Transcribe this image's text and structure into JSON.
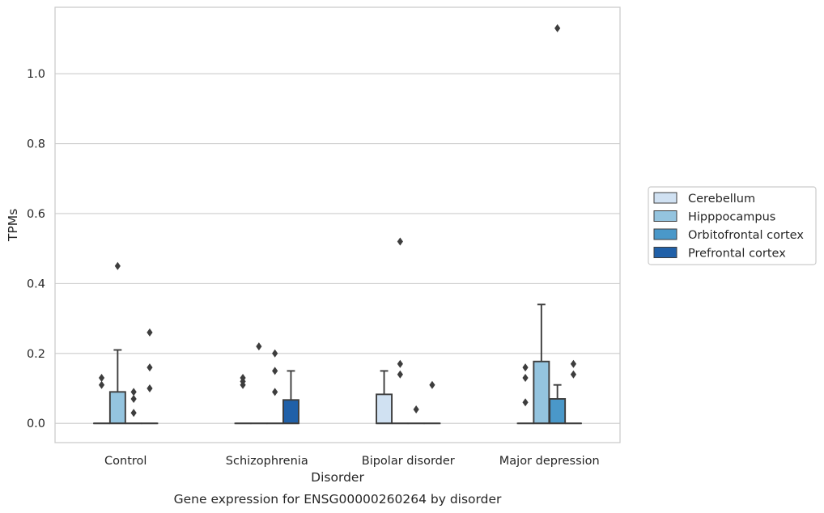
{
  "chart_data": {
    "type": "box",
    "title": "",
    "caption": "Gene expression for ENSG00000260264 by disorder",
    "xlabel": "Disorder",
    "ylabel": "TPMs",
    "ylim": [
      -0.055,
      1.19
    ],
    "yticks": [
      "0.0",
      "0.2",
      "0.4",
      "0.6",
      "0.8",
      "1.0"
    ],
    "ytick_values": [
      0,
      0.2,
      0.4,
      0.6,
      0.8,
      1.0
    ],
    "grid": "horizontal",
    "legend_position": "right",
    "categories": [
      "Control",
      "Schizophrenia",
      "Bipolar disorder",
      "Major depression"
    ],
    "series": [
      {
        "name": "Cerebellum",
        "color": "#d0e1f2",
        "boxes": [
          {
            "q1": 0,
            "median": 0,
            "q3": 0,
            "whisker_low": 0,
            "whisker_high": 0,
            "outliers": [
              0.11,
              0.13
            ]
          },
          {
            "q1": 0,
            "median": 0,
            "q3": 0,
            "whisker_low": 0,
            "whisker_high": 0,
            "outliers": [
              0.11,
              0.12,
              0.13
            ]
          },
          {
            "q1": 0,
            "median": 0,
            "q3": 0.083,
            "whisker_low": 0,
            "whisker_high": 0.15,
            "outliers": []
          },
          {
            "q1": 0,
            "median": 0,
            "q3": 0,
            "whisker_low": 0,
            "whisker_high": 0,
            "outliers": [
              0.06,
              0.13,
              0.16
            ]
          }
        ]
      },
      {
        "name": "Hipppocampus",
        "color": "#94c4df",
        "boxes": [
          {
            "q1": 0,
            "median": 0,
            "q3": 0.09,
            "whisker_low": 0,
            "whisker_high": 0.21,
            "outliers": [
              0.45
            ]
          },
          {
            "q1": 0,
            "median": 0,
            "q3": 0,
            "whisker_low": 0,
            "whisker_high": 0,
            "outliers": [
              0.22
            ]
          },
          {
            "q1": 0,
            "median": 0,
            "q3": 0,
            "whisker_low": 0,
            "whisker_high": 0,
            "outliers": [
              0.14,
              0.17,
              0.52
            ]
          },
          {
            "q1": 0,
            "median": 0,
            "q3": 0.177,
            "whisker_low": 0,
            "whisker_high": 0.34,
            "outliers": []
          }
        ]
      },
      {
        "name": "Orbitofrontal cortex",
        "color": "#4a98c9",
        "boxes": [
          {
            "q1": 0,
            "median": 0,
            "q3": 0,
            "whisker_low": 0,
            "whisker_high": 0,
            "outliers": [
              0.03,
              0.07,
              0.09
            ]
          },
          {
            "q1": 0,
            "median": 0,
            "q3": 0,
            "whisker_low": 0,
            "whisker_high": 0,
            "outliers": [
              0.09,
              0.15,
              0.2
            ]
          },
          {
            "q1": 0,
            "median": 0,
            "q3": 0,
            "whisker_low": 0,
            "whisker_high": 0,
            "outliers": [
              0.04
            ]
          },
          {
            "q1": 0,
            "median": 0,
            "q3": 0.07,
            "whisker_low": 0,
            "whisker_high": 0.11,
            "outliers": [
              1.13
            ]
          }
        ]
      },
      {
        "name": "Prefrontal cortex",
        "color": "#2060a8",
        "boxes": [
          {
            "q1": 0,
            "median": 0,
            "q3": 0,
            "whisker_low": 0,
            "whisker_high": 0,
            "outliers": [
              0.1,
              0.16,
              0.26
            ]
          },
          {
            "q1": 0,
            "median": 0,
            "q3": 0.067,
            "whisker_low": 0,
            "whisker_high": 0.15,
            "outliers": []
          },
          {
            "q1": 0,
            "median": 0,
            "q3": 0,
            "whisker_low": 0,
            "whisker_high": 0,
            "outliers": [
              0.11
            ]
          },
          {
            "q1": 0,
            "median": 0,
            "q3": 0,
            "whisker_low": 0,
            "whisker_high": 0,
            "outliers": [
              0.14,
              0.17
            ]
          }
        ]
      }
    ]
  }
}
